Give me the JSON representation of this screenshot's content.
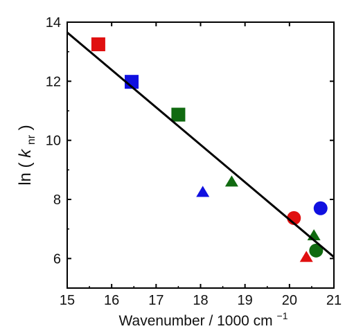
{
  "chart_data": {
    "type": "scatter",
    "title": "",
    "xlabel": "Wavenumber / 1000 cm",
    "xlabel_superscript": "−1",
    "ylabel_prefix": "ln (",
    "ylabel_var": "k",
    "ylabel_sub": "nr",
    "ylabel_suffix": ")",
    "xlim": [
      15,
      21
    ],
    "ylim": [
      5,
      14
    ],
    "x_ticks": [
      15,
      16,
      17,
      18,
      19,
      20,
      21
    ],
    "y_ticks": [
      6,
      8,
      10,
      12,
      14
    ],
    "grid": false,
    "legend": "none",
    "fit_line": {
      "x": [
        15,
        21
      ],
      "y": [
        13.65,
        6.05
      ],
      "color": "#000000"
    },
    "points": [
      {
        "x": 15.7,
        "y": 13.25,
        "shape": "square",
        "color": "#e01010"
      },
      {
        "x": 16.45,
        "y": 11.98,
        "shape": "square",
        "color": "#1010e0"
      },
      {
        "x": 17.5,
        "y": 10.87,
        "shape": "square",
        "color": "#106a10"
      },
      {
        "x": 18.05,
        "y": 8.25,
        "shape": "triangle",
        "color": "#1010e0"
      },
      {
        "x": 18.7,
        "y": 8.6,
        "shape": "triangle",
        "color": "#106a10"
      },
      {
        "x": 20.1,
        "y": 7.37,
        "shape": "circle",
        "color": "#e01010"
      },
      {
        "x": 20.7,
        "y": 7.7,
        "shape": "circle",
        "color": "#1010e0"
      },
      {
        "x": 20.55,
        "y": 6.78,
        "shape": "triangle",
        "color": "#106a10"
      },
      {
        "x": 20.6,
        "y": 6.27,
        "shape": "circle",
        "color": "#106a10"
      },
      {
        "x": 20.38,
        "y": 6.05,
        "shape": "triangle",
        "color": "#e01010"
      }
    ]
  }
}
